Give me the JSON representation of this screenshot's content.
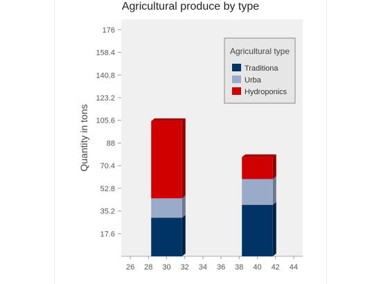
{
  "chart_data": {
    "type": "bar",
    "stacked": true,
    "three_d": true,
    "title": "Agricultural produce by type",
    "ylabel": "Quantity in tons",
    "xlabel": "",
    "x_ticks": [
      "26",
      "28",
      "30",
      "32",
      "34",
      "36",
      "38",
      "40",
      "42",
      "44"
    ],
    "y_ticks": [
      "17.6",
      "35.2",
      "52.8",
      "70.4",
      "88",
      "105.6",
      "123.2",
      "140.8",
      "158.4",
      "176"
    ],
    "xlim": [
      25,
      45
    ],
    "ylim": [
      0,
      184
    ],
    "x": [
      30,
      40
    ],
    "series": [
      {
        "name": "Traditiona",
        "color": "#003366",
        "values": [
          30,
          40
        ]
      },
      {
        "name": "Urba",
        "color": "#9aabca",
        "values": [
          15,
          20
        ]
      },
      {
        "name": "Hydroponics",
        "color": "#d10000",
        "values": [
          60,
          17
        ]
      }
    ],
    "legend": {
      "title": "Agricultural type",
      "position": "top-right"
    },
    "grid": false
  }
}
